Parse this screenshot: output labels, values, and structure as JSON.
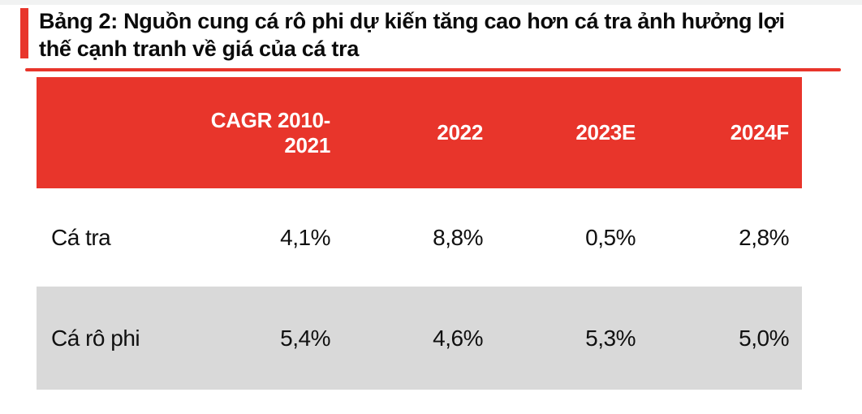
{
  "page": {
    "top_strip_color": "#f1f2f2",
    "background": "#ffffff"
  },
  "colors": {
    "accent_red": "#e8352b",
    "header_bg": "#e8352b",
    "header_text": "#ffffff",
    "alt_row_bg": "#d9d9d9",
    "body_text": "#101010"
  },
  "title": {
    "line1": "Bảng 2: Nguồn cung cá rô phi dự kiến tăng cao hơn cá tra ảnh hưởng lợi",
    "line2": "thế cạnh tranh về giá của cá tra"
  },
  "table": {
    "columns": [
      "",
      "CAGR 2010-2021",
      "2022",
      "2023E",
      "2024F"
    ],
    "rows": [
      {
        "label": "Cá tra",
        "values": [
          "4,1%",
          "8,8%",
          "0,5%",
          "2,8%"
        ]
      },
      {
        "label": "Cá rô phi",
        "values": [
          "5,4%",
          "4,6%",
          "5,3%",
          "5,0%"
        ]
      }
    ]
  },
  "chart_data": {
    "type": "table",
    "title": "Bảng 2: Nguồn cung cá rô phi dự kiến tăng cao hơn cá tra ảnh hưởng lợi thế cạnh tranh về giá của cá tra",
    "columns": [
      "",
      "CAGR 2010-2021",
      "2022",
      "2023E",
      "2024F"
    ],
    "rows": [
      [
        "Cá tra",
        "4,1%",
        "8,8%",
        "0,5%",
        "2,8%"
      ],
      [
        "Cá rô phi",
        "5,4%",
        "4,6%",
        "5,3%",
        "5,0%"
      ]
    ],
    "series": [
      {
        "name": "Cá tra",
        "values": [
          4.1,
          8.8,
          0.5,
          2.8
        ]
      },
      {
        "name": "Cá rô phi",
        "values": [
          5.4,
          4.6,
          5.3,
          5.0
        ]
      }
    ],
    "categories": [
      "CAGR 2010-2021",
      "2022",
      "2023E",
      "2024F"
    ],
    "value_unit": "%"
  }
}
